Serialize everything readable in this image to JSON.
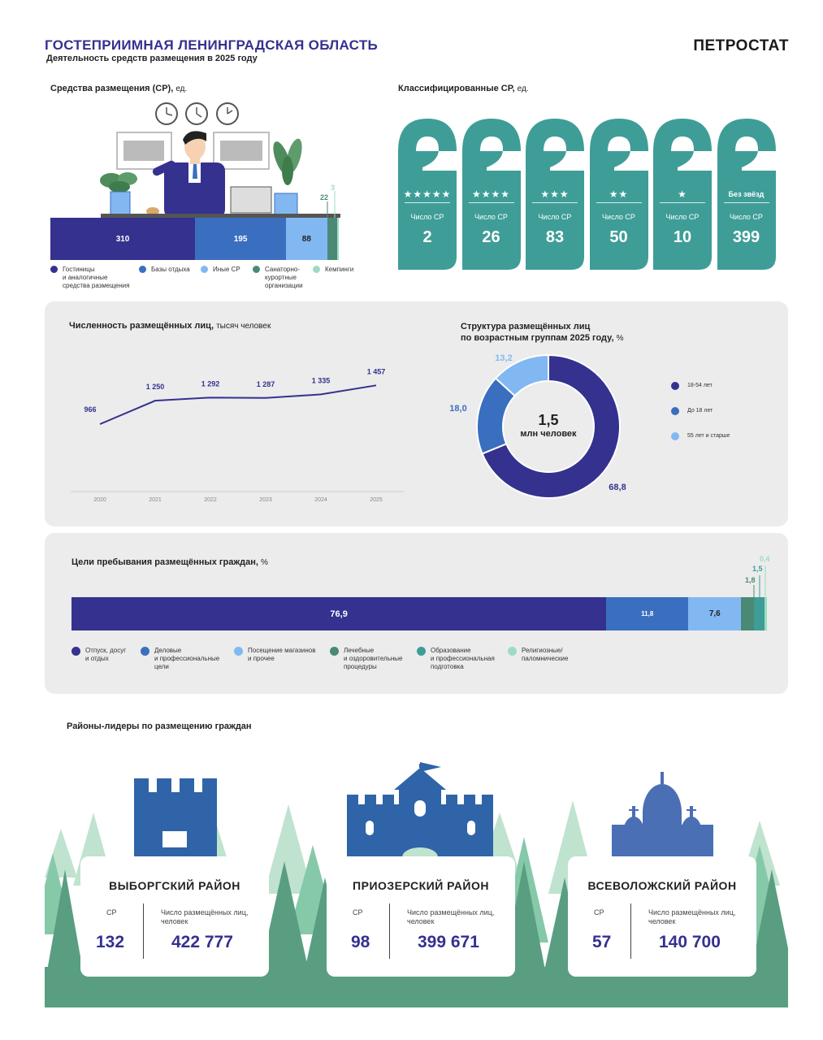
{
  "header": {
    "title": "ГОСТЕПРИИМНАЯ ЛЕНИНГРАДСКАЯ ОБЛАСТЬ",
    "subtitle": "Деятельность средств размещения в 2025 году",
    "brand": "ПЕТРОСТАТ"
  },
  "colors": {
    "navy": "#35318f",
    "blue": "#3a6fc0",
    "lightblue": "#82b8f2",
    "teal": "#3f9d97",
    "green": "#4a8a75",
    "mint": "#9ddcc0",
    "forest": "#5a9e82"
  },
  "chart_data": [
    {
      "type": "bar",
      "title": "Средства размещения (СР),",
      "unit": "ед.",
      "orientation": "horizontal-stacked",
      "categories": [
        "Гостиницы\nи аналогичные\nсредства размещения",
        "Базы отдыха",
        "Иные СР",
        "Санаторно-\nкурортные\nорганизации",
        "Кемпинги"
      ],
      "values": [
        310,
        195,
        88,
        22,
        3
      ],
      "labels": [
        "310",
        "195",
        "88",
        "22",
        "3"
      ]
    },
    {
      "type": "bar",
      "title": "Классифицированные СР,",
      "unit": "ед.",
      "categories": [
        "★★★★★",
        "★★★★",
        "★★★",
        "★★",
        "★",
        "Без звёзд"
      ],
      "values": [
        2,
        26,
        83,
        50,
        10,
        399
      ],
      "item_label": "Число СР"
    },
    {
      "type": "line",
      "title": "Численность размещённых лиц,",
      "unit": "тысяч человек",
      "x": [
        "2020",
        "2021",
        "2022",
        "2023",
        "2024",
        "2025"
      ],
      "values": [
        966,
        1250,
        1292,
        1287,
        1335,
        1457
      ],
      "labels": [
        "966",
        "1 250",
        "1 292",
        "1 287",
        "1 335",
        "1 457"
      ],
      "ylim": [
        0,
        1600
      ]
    },
    {
      "type": "pie",
      "title": "Структура размещённых лиц\nпо возрастным группам 2025 году,",
      "unit": "%",
      "center_value": "1,5",
      "center_label": "млн человек",
      "categories": [
        "18-54 лет",
        "До 18 лет",
        "55 лет и старше"
      ],
      "values": [
        68.8,
        18.0,
        13.2
      ],
      "labels": [
        "68,8",
        "18,0",
        "13,2"
      ]
    },
    {
      "type": "bar",
      "title": "Цели пребывания размещённых граждан,",
      "unit": "%",
      "orientation": "horizontal-stacked",
      "categories": [
        "Отпуск, досуг\nи отдых",
        "Деловые\nи профессиональные\nцели",
        "Посещение магазинов\nи прочее",
        "Лечебные\nи оздоровительные\nпроцедуры",
        "Образование\nи профессиональная\nподготовка",
        "Религиозные/\nпаломнические"
      ],
      "values": [
        76.9,
        11.8,
        7.6,
        1.8,
        1.5,
        0.4
      ],
      "labels": [
        "76,9",
        "11,8",
        "7,6",
        "1,8",
        "1,5",
        "0,4"
      ]
    }
  ],
  "districts": {
    "title": "Районы-лидеры по размещению граждан",
    "k1_label": "СР",
    "k2_label": "Число размещённых лиц,\nчеловек",
    "items": [
      {
        "name": "ВЫБОРГСКИЙ РАЙОН",
        "sr": "132",
        "people": "422 777"
      },
      {
        "name": "ПРИОЗЕРСКИЙ РАЙОН",
        "sr": "98",
        "people": "399 671"
      },
      {
        "name": "ВСЕВОЛОЖСКИЙ РАЙОН",
        "sr": "57",
        "people": "140 700"
      }
    ]
  }
}
